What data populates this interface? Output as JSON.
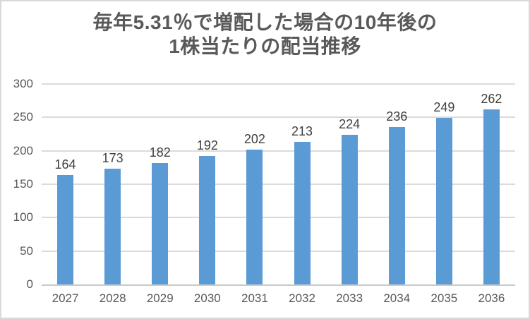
{
  "chart_data": {
    "type": "bar",
    "title": "毎年5.31％で増配した場合の10年後の1株当たりの配当推移",
    "title_lines": [
      "毎年5.31％で増配した場合の10年後の",
      "1株当たりの配当推移"
    ],
    "categories": [
      "2027",
      "2028",
      "2029",
      "2030",
      "2031",
      "2032",
      "2033",
      "2034",
      "2035",
      "2036"
    ],
    "values": [
      164,
      173,
      182,
      192,
      202,
      213,
      224,
      236,
      249,
      262
    ],
    "series_name": "1株当たりの配当",
    "xlabel": "",
    "ylabel": "",
    "ylim": [
      0,
      300
    ],
    "yticks": [
      0,
      50,
      100,
      150,
      200,
      250,
      300
    ],
    "grid": true,
    "legend": false,
    "data_labels": true,
    "colors": {
      "bar": "#5B9BD5",
      "gridline": "#DBDBDB",
      "axis_line": "#C9C9C9",
      "tick_label": "#595959",
      "data_label": "#404040",
      "title": "#595959",
      "border": "#D9D9D9",
      "background": "#FFFFFF"
    }
  }
}
